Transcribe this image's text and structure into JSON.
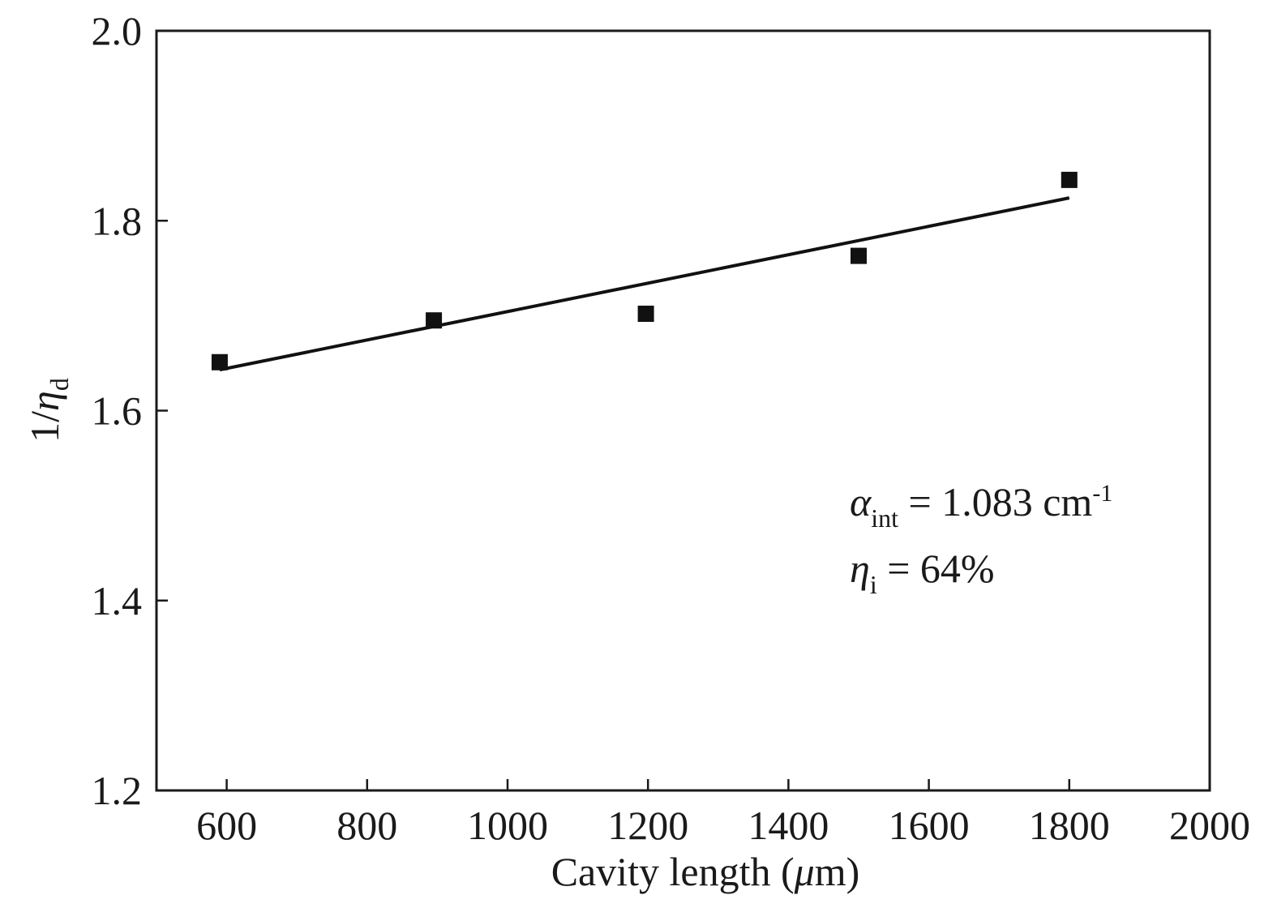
{
  "chart_data": {
    "type": "scatter",
    "xlabel": {
      "prefix": "Cavity length (",
      "mu": "μ",
      "suffix": "m)"
    },
    "ylabel": {
      "prefix": "1/",
      "eta": "η",
      "sub": "d"
    },
    "xlim": [
      500,
      2000
    ],
    "ylim": [
      1.2,
      2.0
    ],
    "xticks": [
      "600",
      "800",
      "1000",
      "1200",
      "1400",
      "1600",
      "1800",
      "2000"
    ],
    "yticks": [
      "1.2",
      "1.4",
      "1.6",
      "1.8",
      "2.0"
    ],
    "grid": false,
    "series": [
      {
        "marker": "square",
        "color": "#111111",
        "points": [
          {
            "x": 590,
            "y": 1.651
          },
          {
            "x": 895,
            "y": 1.695
          },
          {
            "x": 1197,
            "y": 1.702
          },
          {
            "x": 1500,
            "y": 1.763
          },
          {
            "x": 1800,
            "y": 1.843
          }
        ]
      }
    ],
    "fit_line": {
      "color": "#111111",
      "x": [
        590,
        1800
      ],
      "y": [
        1.643,
        1.824
      ]
    },
    "annotations": [
      {
        "symbol": "α",
        "sub": "int",
        "text": " = 1.083 cm",
        "sup": "-1"
      },
      {
        "symbol": "η",
        "sub": "i",
        "text": " = 64%"
      }
    ]
  }
}
